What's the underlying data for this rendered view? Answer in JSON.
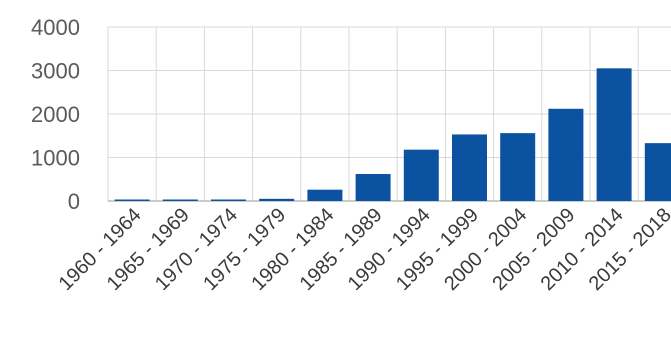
{
  "chart_data": {
    "type": "bar",
    "categories": [
      "1960 - 1964",
      "1965 - 1969",
      "1970 - 1974",
      "1975 - 1979",
      "1980 - 1984",
      "1985 - 1989",
      "1990 - 1994",
      "1995 - 1999",
      "2000 - 2004",
      "2005 - 2009",
      "2010 - 2014",
      "2015 - 2018"
    ],
    "values": [
      5,
      5,
      10,
      50,
      260,
      620,
      1180,
      1530,
      1560,
      2120,
      3050,
      1330
    ],
    "title": "",
    "xlabel": "",
    "ylabel": "",
    "ylim": [
      0,
      4000
    ],
    "yticks": [
      0,
      1000,
      2000,
      3000,
      4000
    ],
    "grid": true,
    "legend": "none",
    "colors": {
      "bar": "#0b53a0",
      "grid": "#d9d9d9",
      "axis": "#9a9a9a",
      "tick_text": "#5a5a5a"
    }
  }
}
